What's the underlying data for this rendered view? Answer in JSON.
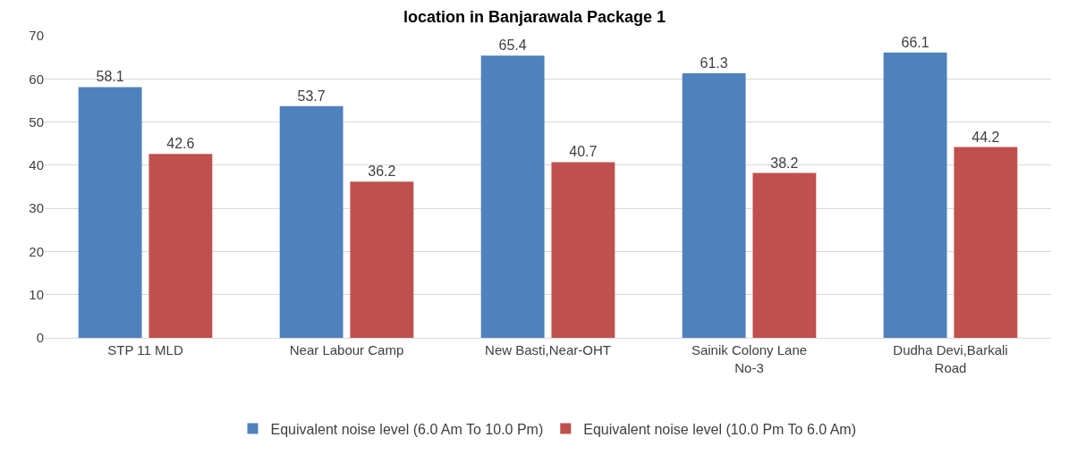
{
  "chart_data": {
    "type": "bar",
    "title": "location in Banjarawala Package 1",
    "categories": [
      "STP 11 MLD",
      "Near Labour Camp",
      "New Basti,Near-OHT",
      "Sainik Colony Lane No-3",
      "Dudha Devi,Barkali Road"
    ],
    "series": [
      {
        "name": "Equivalent noise level (6.0 Am To 10.0 Pm)",
        "color": "#4f81bd",
        "values": [
          58.1,
          53.7,
          65.4,
          61.3,
          66.1
        ]
      },
      {
        "name": "Equivalent noise level (10.0 Pm To 6.0 Am)",
        "color": "#c0504d",
        "values": [
          42.6,
          36.2,
          40.7,
          38.2,
          44.2
        ]
      }
    ],
    "ylim": [
      0,
      70
    ],
    "yticks": [
      0,
      10,
      20,
      30,
      40,
      50,
      60,
      70
    ],
    "grid": "y",
    "legend": "bottom",
    "data_labels": true
  }
}
